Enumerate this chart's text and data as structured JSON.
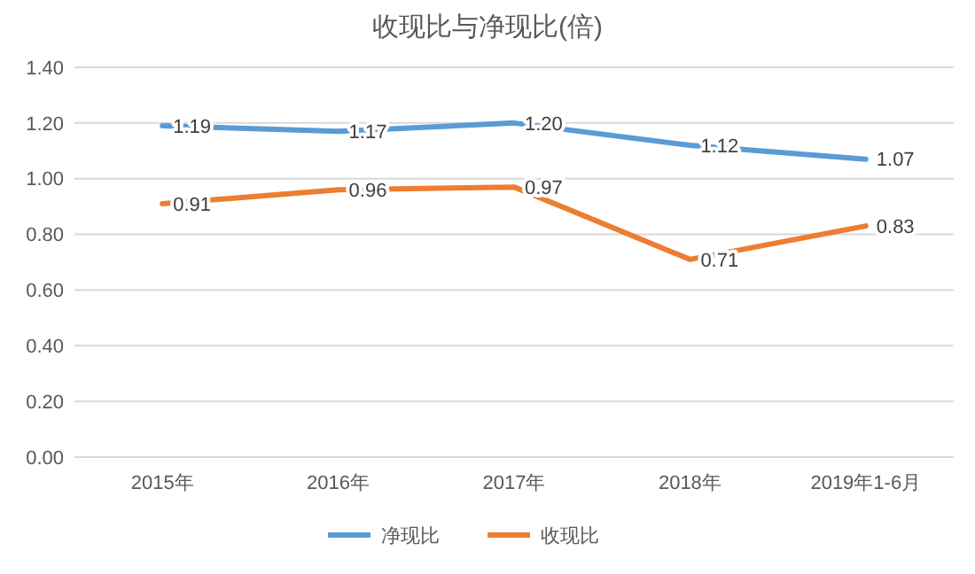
{
  "chart_data": {
    "type": "line",
    "title": "收现比与净现比(倍)",
    "categories": [
      "2015年",
      "2016年",
      "2017年",
      "2018年",
      "2019年1-6月"
    ],
    "series": [
      {
        "name": "净现比",
        "color": "#5b9bd5",
        "values": [
          1.19,
          1.17,
          1.2,
          1.12,
          1.07
        ],
        "value_labels": [
          "1.19",
          "1.17",
          "1.20",
          "1.12",
          "1.07"
        ]
      },
      {
        "name": "收现比",
        "color": "#ed7d31",
        "values": [
          0.91,
          0.96,
          0.97,
          0.71,
          0.83
        ],
        "value_labels": [
          "0.91",
          "0.96",
          "0.97",
          "0.71",
          "0.83"
        ]
      }
    ],
    "ylim": [
      0,
      1.4
    ],
    "yticks": [
      {
        "value": 0,
        "label": "0.00"
      },
      {
        "value": 0.2,
        "label": "0.20"
      },
      {
        "value": 0.4,
        "label": "0.40"
      },
      {
        "value": 0.6,
        "label": "0.60"
      },
      {
        "value": 0.8,
        "label": "0.80"
      },
      {
        "value": 1,
        "label": "1.00"
      },
      {
        "value": 1.2,
        "label": "1.20"
      },
      {
        "value": 1.4,
        "label": "1.40"
      }
    ],
    "grid": "y",
    "legend": "bottom",
    "marker": "none",
    "line_style": "solid"
  }
}
